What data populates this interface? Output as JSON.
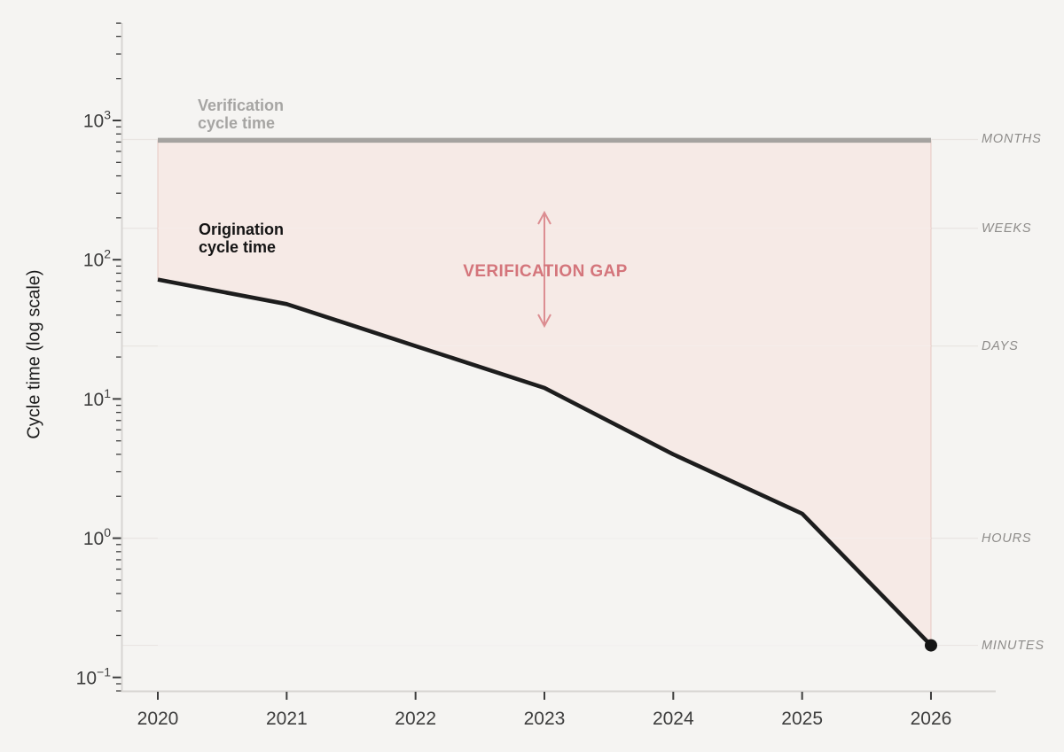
{
  "chart_data": {
    "type": "line",
    "title": "",
    "ylabel": "Cycle time (log scale)",
    "xlabel": "",
    "y_scale": "log",
    "ylim": [
      0.08,
      5000
    ],
    "grid": "unit reference lines only",
    "x": [
      2020,
      2021,
      2022,
      2023,
      2024,
      2025,
      2026
    ],
    "x_tick_labels": [
      "2020",
      "2021",
      "2022",
      "2023",
      "2024",
      "2025",
      "2026"
    ],
    "y_ticks": [
      {
        "label_base": "10",
        "label_exp": "3",
        "value": 1000
      },
      {
        "label_base": "10",
        "label_exp": "2",
        "value": 100
      },
      {
        "label_base": "10",
        "label_exp": "1",
        "value": 10
      },
      {
        "label_base": "10",
        "label_exp": "0",
        "value": 1
      },
      {
        "label_base": "10",
        "label_exp": "−1",
        "value": 0.1
      }
    ],
    "series": [
      {
        "name": "Verification cycle time",
        "values": [
          720,
          720,
          720,
          720,
          720,
          720,
          720
        ],
        "color": "#a5a3a0",
        "style": "thick flat line"
      },
      {
        "name": "Origination cycle time",
        "values": [
          72,
          48,
          24,
          12,
          4,
          1.5,
          0.17
        ],
        "color": "#1d1d1d",
        "style": "thick line, end dot marker"
      }
    ],
    "series_labels": {
      "verification": "Verification\ncycle time",
      "origination": "Origination\ncycle time"
    },
    "gap_label": "VERIFICATION GAP",
    "unit_lines": [
      {
        "label": "MONTHS",
        "value": 730
      },
      {
        "label": "WEEKS",
        "value": 168
      },
      {
        "label": "DAYS",
        "value": 24
      },
      {
        "label": "HOURS",
        "value": 1
      },
      {
        "label": "MINUTES",
        "value": 0.17
      }
    ],
    "colors": {
      "background": "#f5f4f2",
      "fill": "rgba(248,216,210,0.35)",
      "fill_edge": "rgba(224,178,170,0.45)",
      "grid": "#e9e5e2",
      "grid_inside_fill": "rgba(255,255,255,0.5)",
      "axis_spine": "#d7d5d2",
      "tick": "#3d3d3d",
      "tick_label": "#3d3d3d",
      "gap_text": "#d4757b",
      "arrow": "#dc8d91",
      "unit_label": "#8e8c8a",
      "verification_label": "#a6a5a3",
      "origination_label": "#141414",
      "marker": "#151515"
    },
    "legend_position": "in-plot text annotations"
  }
}
